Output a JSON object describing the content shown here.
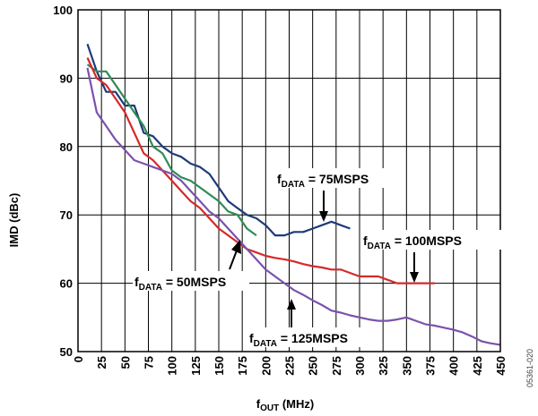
{
  "chart_data": {
    "type": "line",
    "xlabel_main": "f",
    "xlabel_sub": "OUT",
    "xlabel_unit": " (MHz)",
    "ylabel": "IMD (dBc)",
    "xlim": [
      0,
      450
    ],
    "ylim": [
      50,
      100
    ],
    "x_ticks": [
      0,
      25,
      50,
      75,
      100,
      125,
      150,
      175,
      200,
      225,
      250,
      275,
      300,
      325,
      350,
      375,
      400,
      425,
      450
    ],
    "x_tick_labels": [
      "0",
      "25",
      "50",
      "75",
      "100",
      "125",
      "150",
      "175",
      "200",
      "225",
      "250",
      "275",
      "300",
      "325",
      "350",
      "375",
      "400",
      "425",
      "450"
    ],
    "y_ticks": [
      50,
      60,
      70,
      80,
      90,
      100
    ],
    "y_tick_labels": [
      "50",
      "60",
      "70",
      "80",
      "90",
      "100"
    ],
    "grid": true,
    "figure_id": "05361-020",
    "series": [
      {
        "name": "75MSPS",
        "color": "#1f3a7a",
        "x": [
          10,
          20,
          30,
          40,
          50,
          60,
          70,
          80,
          90,
          100,
          110,
          120,
          130,
          140,
          150,
          160,
          170,
          180,
          190,
          200,
          210,
          220,
          230,
          240,
          250,
          260,
          270,
          280,
          290
        ],
        "y": [
          95,
          91,
          88,
          88,
          86,
          86,
          82,
          81.5,
          80,
          79,
          78.5,
          77.5,
          77,
          76,
          74,
          72,
          71,
          70,
          69.5,
          68.5,
          67,
          67,
          67.5,
          67.5,
          68,
          68.5,
          69,
          68.5,
          68
        ]
      },
      {
        "name": "50MSPS",
        "color": "#2e8b57",
        "x": [
          10,
          20,
          30,
          40,
          50,
          60,
          70,
          80,
          90,
          100,
          110,
          120,
          130,
          140,
          150,
          160,
          170,
          180,
          190
        ],
        "y": [
          92,
          91,
          91,
          89,
          87,
          85,
          83,
          80,
          79,
          76.5,
          75.5,
          75,
          74,
          73,
          72,
          70.5,
          70,
          68,
          67
        ]
      },
      {
        "name": "100MSPS",
        "color": "#d42a2a",
        "x": [
          10,
          20,
          30,
          40,
          50,
          60,
          70,
          80,
          90,
          100,
          110,
          120,
          130,
          140,
          150,
          160,
          170,
          180,
          190,
          200,
          210,
          220,
          230,
          240,
          250,
          260,
          270,
          280,
          290,
          300,
          310,
          320,
          330,
          340,
          350,
          360,
          370,
          380
        ],
        "y": [
          93,
          90,
          89,
          87,
          85,
          82,
          79,
          78,
          76.5,
          75,
          73.5,
          72,
          71,
          69.5,
          68,
          67,
          66,
          65,
          64.5,
          64,
          63.7,
          63.5,
          63.2,
          62.8,
          62.5,
          62.3,
          62,
          62,
          61.5,
          61,
          61,
          61,
          60.5,
          60,
          60,
          60,
          60,
          60
        ]
      },
      {
        "name": "125MSPS",
        "color": "#7b52ab",
        "x": [
          10,
          20,
          30,
          40,
          50,
          60,
          70,
          80,
          90,
          100,
          110,
          120,
          130,
          140,
          150,
          160,
          170,
          180,
          190,
          200,
          210,
          220,
          230,
          240,
          250,
          260,
          270,
          280,
          290,
          300,
          310,
          320,
          330,
          340,
          350,
          360,
          370,
          380,
          390,
          400,
          410,
          420,
          430,
          440,
          450
        ],
        "y": [
          91.5,
          85,
          83,
          81,
          79.5,
          78,
          77.5,
          77,
          76.5,
          76,
          75,
          73.5,
          72,
          70.5,
          69.5,
          68,
          66.5,
          65,
          63.5,
          62,
          61,
          60,
          59,
          58.3,
          57.5,
          56.8,
          56,
          55.7,
          55.3,
          55,
          54.7,
          54.5,
          54.5,
          54.7,
          55,
          54.5,
          54,
          53.8,
          53.5,
          53.2,
          52.8,
          52.2,
          51.5,
          51.2,
          51
        ]
      }
    ],
    "annotations": [
      {
        "key": "75",
        "prefix": "f",
        "sub": "DATA",
        "text": " = 75MSPS"
      },
      {
        "key": "100",
        "prefix": "f",
        "sub": "DATA",
        "text": " = 100MSPS"
      },
      {
        "key": "50",
        "prefix": "f",
        "sub": "DATA",
        "text": " = 50MSPS"
      },
      {
        "key": "125",
        "prefix": "f",
        "sub": "DATA",
        "text": " = 125MSPS"
      }
    ]
  }
}
